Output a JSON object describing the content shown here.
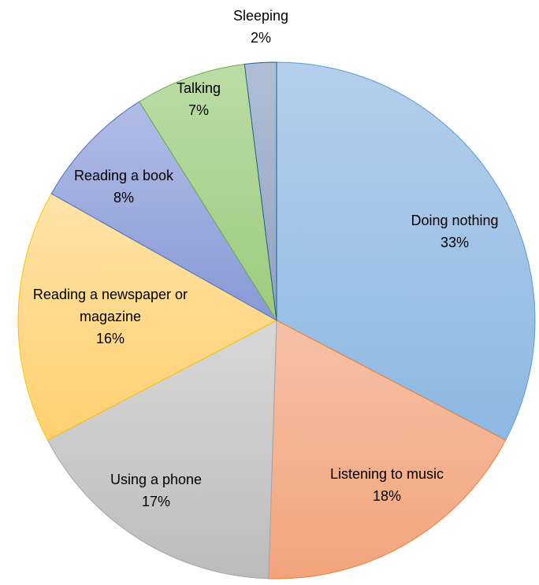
{
  "chart_data": {
    "type": "pie",
    "title": "",
    "slices": [
      {
        "label": "Doing nothing",
        "value": 33,
        "display": "33%",
        "color": "#9dc3e6",
        "stroke": "#5b9bd5",
        "grad_light": "#b4cfeb",
        "grad_dark": "#8db8e2"
      },
      {
        "label": "Listening to music",
        "value": 18,
        "display": "18%",
        "color": "#f4b183",
        "stroke": "#ed7d31",
        "grad_light": "#f6c1a6",
        "grad_dark": "#f2a47c"
      },
      {
        "label": "Using a phone",
        "value": 17,
        "display": "17%",
        "color": "#c9c9c9",
        "stroke": "#a5a5a5",
        "grad_light": "#d8d8d8",
        "grad_dark": "#bcbcbc"
      },
      {
        "label": "Reading a newspaper or magazine",
        "label_lines": [
          "Reading a newspaper or",
          "magazine"
        ],
        "value": 16,
        "display": "16%",
        "color": "#ffd88a",
        "stroke": "#ffc000",
        "grad_light": "#ffe3a8",
        "grad_dark": "#ffd070"
      },
      {
        "label": "Reading a book",
        "value": 8,
        "display": "8%",
        "color": "#9aa8dc",
        "stroke": "#4472c4",
        "grad_light": "#b2bde6",
        "grad_dark": "#8799d6"
      },
      {
        "label": "Talking",
        "value": 7,
        "display": "7%",
        "color": "#a9d18e",
        "stroke": "#70ad47",
        "grad_light": "#bcdca6",
        "grad_dark": "#9ccb7d"
      },
      {
        "label": "Sleeping",
        "value": 2,
        "display": "2%",
        "color": "#9fb1cc",
        "stroke": "#255e91",
        "grad_light": "#b0bfd6",
        "grad_dark": "#8fa3c2"
      }
    ]
  }
}
